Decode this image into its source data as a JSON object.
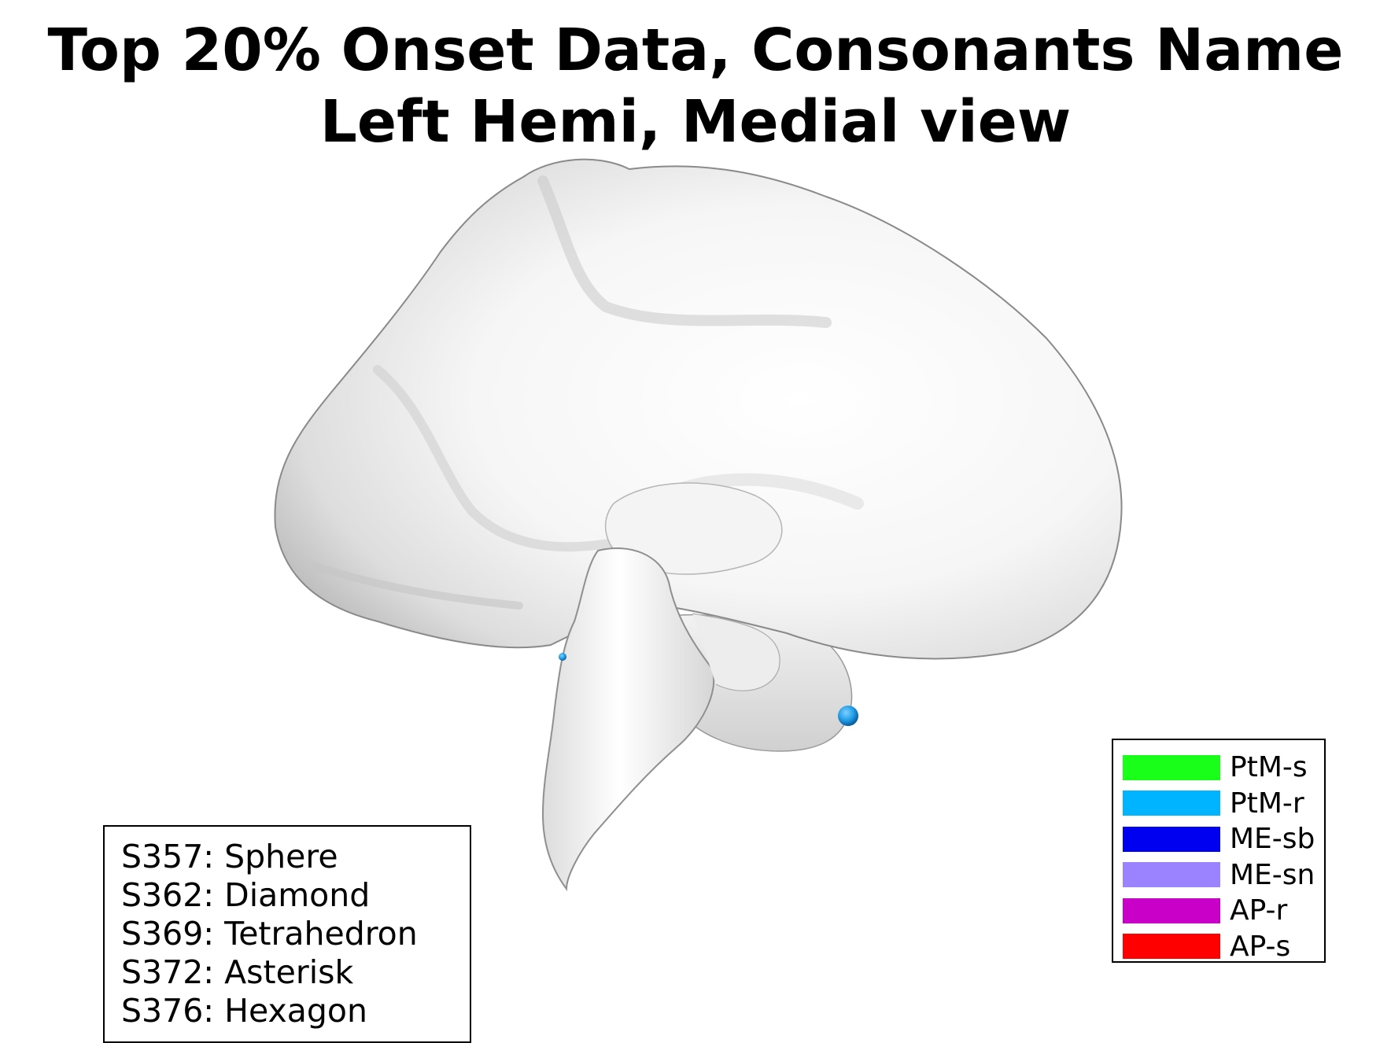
{
  "title": {
    "line1": "Top 20% Onset Data, Consonants Name",
    "line2": "Left Hemi, Medial view"
  },
  "subject_legend": {
    "entries": [
      "S357: Sphere",
      "S362: Diamond",
      "S369: Tetrahedron",
      "S372: Asterisk",
      "S376: Hexagon"
    ]
  },
  "region_legend": {
    "entries": [
      {
        "label": "PtM-s",
        "color": "#19ff19"
      },
      {
        "label": "PtM-r",
        "color": "#00b4ff"
      },
      {
        "label": "ME-sb",
        "color": "#0000f0"
      },
      {
        "label": "ME-sn",
        "color": "#9b82ff"
      },
      {
        "label": "AP-r",
        "color": "#c800c8"
      },
      {
        "label": "AP-s",
        "color": "#ff0000"
      }
    ]
  },
  "markers": [
    {
      "shape": "sphere",
      "region": "PtM-r",
      "color": "#1e9be6"
    },
    {
      "shape": "sphere",
      "region": "PtM-r",
      "color": "#1e9be6"
    }
  ]
}
